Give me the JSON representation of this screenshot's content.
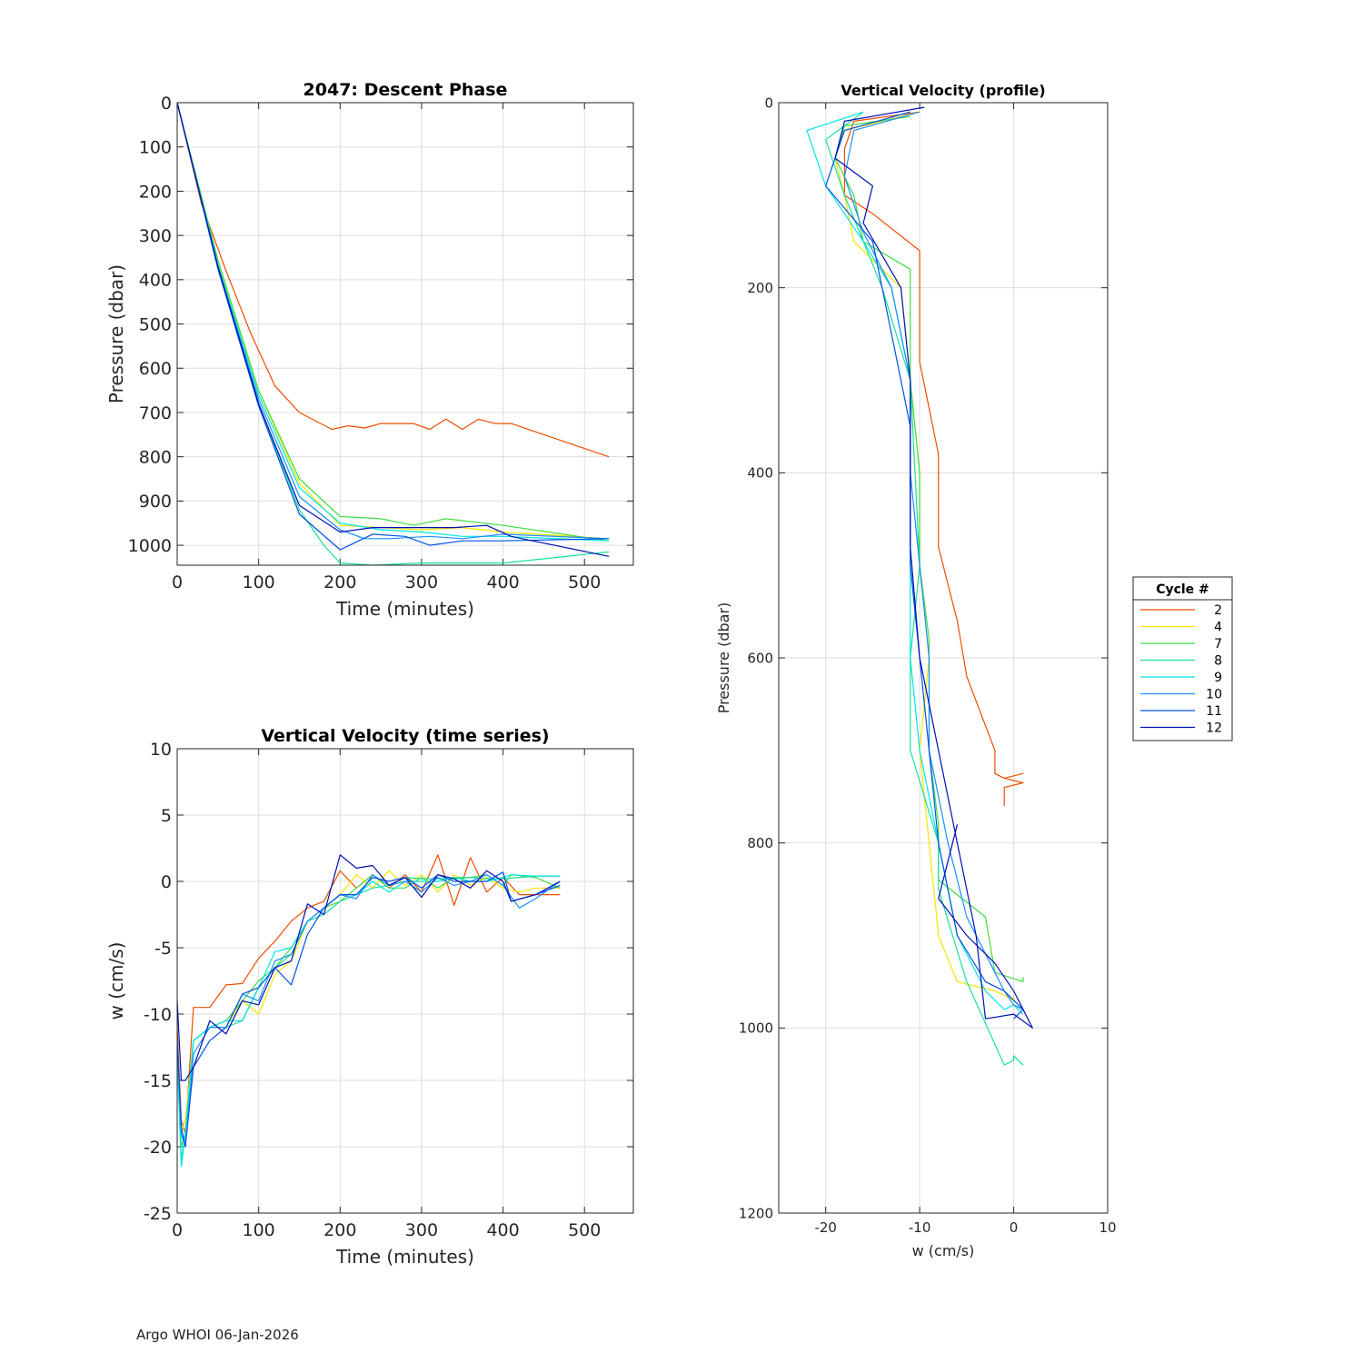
{
  "footer": "Argo WHOI 06-Jan-2026",
  "legend": {
    "title": "Cycle #",
    "cycles": [
      "2",
      "4",
      "7",
      "8",
      "9",
      "10",
      "11",
      "12"
    ],
    "colors": [
      "#ee4c00",
      "#f5e500",
      "#41dc41",
      "#17df9b",
      "#00e4e4",
      "#1a8ffa",
      "#0050e6",
      "#0010b5"
    ]
  },
  "chart_data": [
    {
      "id": "descent",
      "type": "line",
      "title": "2047: Descent Phase",
      "xlabel": "Time (minutes)",
      "ylabel": "Pressure (dbar)",
      "xlim": [
        0,
        560
      ],
      "ylim": [
        0,
        1045
      ],
      "y_reversed": true,
      "xticks": [
        0,
        100,
        200,
        300,
        400,
        500
      ],
      "yticks": [
        0,
        100,
        200,
        300,
        400,
        500,
        600,
        700,
        800,
        900,
        1000
      ],
      "grid": true,
      "series": [
        {
          "name": "2",
          "x": [
            0,
            30,
            60,
            90,
            120,
            150,
            190,
            210,
            230,
            250,
            290,
            310,
            330,
            350,
            370,
            390,
            410,
            530
          ],
          "y": [
            0,
            230,
            380,
            520,
            640,
            700,
            738,
            730,
            735,
            725,
            725,
            738,
            715,
            738,
            715,
            725,
            725,
            800
          ]
        },
        {
          "name": "4",
          "x": [
            0,
            50,
            100,
            150,
            200,
            250,
            300,
            350,
            400,
            530
          ],
          "y": [
            0,
            360,
            650,
            860,
            955,
            960,
            965,
            960,
            970,
            985
          ]
        },
        {
          "name": "7",
          "x": [
            0,
            50,
            100,
            150,
            200,
            250,
            290,
            330,
            400,
            530
          ],
          "y": [
            0,
            355,
            650,
            850,
            935,
            940,
            955,
            940,
            955,
            990
          ]
        },
        {
          "name": "8",
          "x": [
            0,
            50,
            100,
            150,
            180,
            200,
            240,
            300,
            400,
            530
          ],
          "y": [
            0,
            370,
            680,
            920,
            1000,
            1040,
            1045,
            1040,
            1040,
            1015
          ]
        },
        {
          "name": "9",
          "x": [
            0,
            50,
            100,
            150,
            200,
            250,
            300,
            350,
            400,
            530
          ],
          "y": [
            0,
            365,
            660,
            870,
            950,
            965,
            970,
            980,
            980,
            990
          ]
        },
        {
          "name": "10",
          "x": [
            0,
            50,
            100,
            150,
            200,
            230,
            260,
            310,
            350,
            400,
            530
          ],
          "y": [
            0,
            370,
            670,
            890,
            965,
            985,
            985,
            980,
            985,
            975,
            985
          ]
        },
        {
          "name": "11",
          "x": [
            0,
            50,
            100,
            150,
            200,
            240,
            280,
            310,
            350,
            400,
            530
          ],
          "y": [
            0,
            375,
            685,
            930,
            1010,
            975,
            980,
            1000,
            990,
            990,
            985
          ]
        },
        {
          "name": "12",
          "x": [
            0,
            50,
            100,
            150,
            200,
            240,
            300,
            340,
            380,
            410,
            530
          ],
          "y": [
            0,
            370,
            680,
            910,
            970,
            960,
            960,
            960,
            955,
            980,
            1025
          ]
        }
      ]
    },
    {
      "id": "velocity-time",
      "type": "line",
      "title": "Vertical Velocity (time series)",
      "xlabel": "Time (minutes)",
      "ylabel": "w (cm/s)",
      "xlim": [
        0,
        560
      ],
      "ylim": [
        -25,
        10
      ],
      "xticks": [
        0,
        100,
        200,
        300,
        400,
        500
      ],
      "yticks": [
        10,
        5,
        0,
        -5,
        -10,
        -15,
        -20,
        -25
      ],
      "grid": true,
      "series": [
        {
          "name": "2",
          "x": [
            0,
            5,
            10,
            20,
            40,
            60,
            80,
            100,
            120,
            140,
            160,
            180,
            200,
            220,
            240,
            260,
            280,
            300,
            320,
            340,
            360,
            380,
            400,
            420,
            440,
            470
          ],
          "y": [
            -11,
            -18,
            -19,
            -9.5,
            -9.5,
            -7.8,
            -7.7,
            -5.8,
            -4.5,
            -3,
            -2,
            -1.5,
            0.8,
            -0.5,
            0.5,
            -0.5,
            0.5,
            -0.8,
            2,
            -1.8,
            1.8,
            -0.8,
            0.3,
            -1,
            -1,
            -1
          ]
        },
        {
          "name": "4",
          "x": [
            0,
            5,
            10,
            20,
            40,
            60,
            80,
            100,
            120,
            140,
            160,
            180,
            200,
            220,
            240,
            260,
            280,
            300,
            320,
            340,
            360,
            380,
            400,
            420,
            440,
            470
          ],
          "y": [
            -12,
            -19,
            -18,
            -12,
            -11,
            -11,
            -9,
            -10,
            -7,
            -6,
            -3,
            -2,
            -1,
            0.5,
            -0.5,
            0.8,
            -0.3,
            0.5,
            -0.8,
            0.5,
            -0.3,
            0.3,
            -0.5,
            -0.8,
            -0.5,
            -0.5
          ]
        },
        {
          "name": "7",
          "x": [
            0,
            5,
            10,
            20,
            40,
            60,
            80,
            100,
            120,
            140,
            160,
            180,
            200,
            220,
            240,
            260,
            280,
            300,
            320,
            340,
            360,
            380,
            400,
            410,
            440,
            470
          ],
          "y": [
            -12,
            -20,
            -19,
            -12,
            -11,
            -10.5,
            -9,
            -7.5,
            -6.5,
            -5,
            -3,
            -2,
            -1.5,
            -0.5,
            0.5,
            -0.5,
            -0.5,
            0.3,
            -0.5,
            0.3,
            0.3,
            0.5,
            -0.3,
            0.5,
            0.3,
            -0.5
          ]
        },
        {
          "name": "8",
          "x": [
            0,
            5,
            10,
            20,
            40,
            60,
            80,
            100,
            120,
            140,
            160,
            180,
            200,
            220,
            240,
            260,
            280,
            300,
            320,
            340,
            360,
            380,
            400,
            420,
            440,
            470
          ],
          "y": [
            -13,
            -21,
            -19,
            -12,
            -11,
            -11,
            -10.5,
            -8,
            -6.5,
            -5.5,
            -3,
            -2.5,
            -1.5,
            -1,
            -0.5,
            -0.3,
            0.3,
            0.2,
            0.2,
            0.2,
            0.3,
            0.2,
            0.2,
            0.3,
            0.4,
            0.4
          ]
        },
        {
          "name": "9",
          "x": [
            0,
            5,
            10,
            20,
            40,
            60,
            80,
            100,
            120,
            140,
            160,
            180,
            200,
            220,
            240,
            260,
            280,
            300,
            320,
            340,
            360,
            380,
            400,
            410,
            440,
            470
          ],
          "y": [
            -13,
            -21.5,
            -19,
            -12,
            -11,
            -10.5,
            -10.5,
            -8,
            -5.3,
            -5,
            -3,
            -2,
            -1,
            -1,
            0,
            -0.8,
            0,
            0,
            0,
            0.3,
            0,
            0,
            0.3,
            0.5,
            0.4,
            0.4
          ]
        },
        {
          "name": "10",
          "x": [
            0,
            5,
            10,
            20,
            40,
            60,
            80,
            100,
            120,
            140,
            160,
            180,
            200,
            220,
            240,
            260,
            280,
            300,
            320,
            340,
            360,
            380,
            400,
            420,
            440,
            470
          ],
          "y": [
            -12,
            -19,
            -20,
            -13,
            -11,
            -11,
            -8.5,
            -9,
            -6,
            -5.5,
            -3,
            -2,
            -1,
            -1.3,
            0.5,
            -0.3,
            0,
            -0.8,
            0.3,
            -0.3,
            0,
            0.5,
            -0.3,
            -2,
            -1.3,
            0
          ]
        },
        {
          "name": "11",
          "x": [
            0,
            5,
            10,
            20,
            40,
            60,
            80,
            100,
            120,
            140,
            160,
            180,
            200,
            220,
            240,
            260,
            280,
            300,
            320,
            340,
            360,
            380,
            400,
            410,
            440,
            470
          ],
          "y": [
            -12,
            -18.5,
            -20,
            -14,
            -12,
            -11,
            -8.5,
            -8,
            -6.5,
            -7.8,
            -4,
            -2,
            -1,
            -1,
            0.3,
            0,
            0.3,
            -0.5,
            0.5,
            0,
            0,
            0,
            0.7,
            -1.5,
            -1,
            -0.3
          ]
        },
        {
          "name": "12",
          "x": [
            0,
            5,
            10,
            20,
            40,
            60,
            80,
            100,
            120,
            140,
            160,
            180,
            200,
            220,
            240,
            260,
            280,
            300,
            320,
            340,
            360,
            380,
            400,
            410,
            440,
            470
          ],
          "y": [
            -9,
            -15,
            -15,
            -14,
            -10.5,
            -11.5,
            -9,
            -9.3,
            -6.5,
            -6,
            -1.7,
            -2.5,
            2,
            1,
            1.2,
            -0.3,
            0.3,
            -1.2,
            0.5,
            0.2,
            -0.5,
            0.8,
            0,
            -1.5,
            -1,
            0
          ]
        }
      ]
    },
    {
      "id": "velocity-profile",
      "type": "line",
      "title": "Vertical Velocity (profile)",
      "xlabel": "w (cm/s)",
      "ylabel": "Pressure (dbar)",
      "xlim": [
        -25,
        10
      ],
      "ylim": [
        0,
        1200
      ],
      "y_reversed": true,
      "xticks": [
        -20,
        -10,
        0,
        10
      ],
      "yticks": [
        0,
        200,
        400,
        600,
        800,
        1000,
        1200
      ],
      "grid": true,
      "series": [
        {
          "name": "2",
          "x": [
            -10,
            -17,
            -18,
            -18,
            -15,
            -10,
            -10,
            -10,
            -8,
            -8,
            -6,
            -5,
            -2,
            -2,
            -1,
            1,
            -1,
            1,
            -1,
            -1
          ],
          "y": [
            10,
            20,
            50,
            100,
            120,
            160,
            220,
            280,
            380,
            480,
            560,
            620,
            700,
            725,
            730,
            725,
            730,
            735,
            740,
            760
          ]
        },
        {
          "name": "4",
          "x": [
            -10,
            -18,
            -19,
            -18,
            -17,
            -12,
            -11,
            -10,
            -10,
            -9,
            -10,
            -9,
            -8,
            -6,
            -2,
            0,
            0
          ],
          "y": [
            10,
            30,
            60,
            100,
            150,
            200,
            300,
            400,
            500,
            600,
            700,
            800,
            900,
            950,
            960,
            970,
            965
          ]
        },
        {
          "name": "7",
          "x": [
            -11,
            -18,
            -19,
            -17,
            -16,
            -11,
            -11,
            -10,
            -10,
            -9,
            -9,
            -8,
            -8,
            -3,
            -2,
            1,
            1
          ],
          "y": [
            15,
            25,
            60,
            100,
            150,
            180,
            300,
            400,
            500,
            580,
            700,
            780,
            840,
            880,
            940,
            950,
            945
          ]
        },
        {
          "name": "8",
          "x": [
            -16,
            -20,
            -18,
            -16,
            -14,
            -11,
            -10.5,
            -10,
            -11,
            -11,
            -8,
            -8,
            -5,
            -1,
            0,
            0,
            1
          ],
          "y": [
            10,
            40,
            100,
            150,
            200,
            300,
            400,
            500,
            600,
            700,
            800,
            850,
            950,
            1040,
            1035,
            1030,
            1040
          ]
        },
        {
          "name": "9",
          "x": [
            -16,
            -22,
            -20,
            -16,
            -13,
            -11,
            -11,
            -11,
            -11,
            -10,
            -8,
            -6,
            -3,
            -1,
            0,
            1
          ],
          "y": [
            10,
            30,
            90,
            150,
            200,
            300,
            400,
            500,
            600,
            700,
            800,
            900,
            960,
            980,
            975,
            985
          ]
        },
        {
          "name": "10",
          "x": [
            -10,
            -17,
            -18,
            -16,
            -13,
            -11,
            -11,
            -10,
            -9,
            -9,
            -7,
            -5,
            -2,
            -1,
            0,
            1
          ],
          "y": [
            10,
            30,
            80,
            140,
            200,
            300,
            400,
            500,
            600,
            700,
            800,
            880,
            940,
            960,
            975,
            980
          ]
        },
        {
          "name": "11",
          "x": [
            -11,
            -18,
            -20,
            -15,
            -14,
            -12,
            -11,
            -11,
            -10,
            -9,
            -8,
            -6,
            -3,
            -1,
            0,
            1,
            0
          ],
          "y": [
            10,
            30,
            90,
            150,
            200,
            300,
            350,
            500,
            600,
            700,
            800,
            900,
            950,
            960,
            970,
            980,
            990
          ]
        },
        {
          "name": "12",
          "x": [
            -9.5,
            -18,
            -19,
            -15,
            -16,
            -12,
            -11,
            -11,
            -10,
            -8,
            -6,
            -4,
            -3,
            0,
            2,
            0,
            -2,
            -5,
            -8,
            -6,
            -6
          ],
          "y": [
            5,
            20,
            60,
            90,
            130,
            200,
            300,
            480,
            600,
            700,
            800,
            900,
            990,
            985,
            1000,
            960,
            930,
            900,
            860,
            780,
            780
          ]
        }
      ]
    }
  ]
}
